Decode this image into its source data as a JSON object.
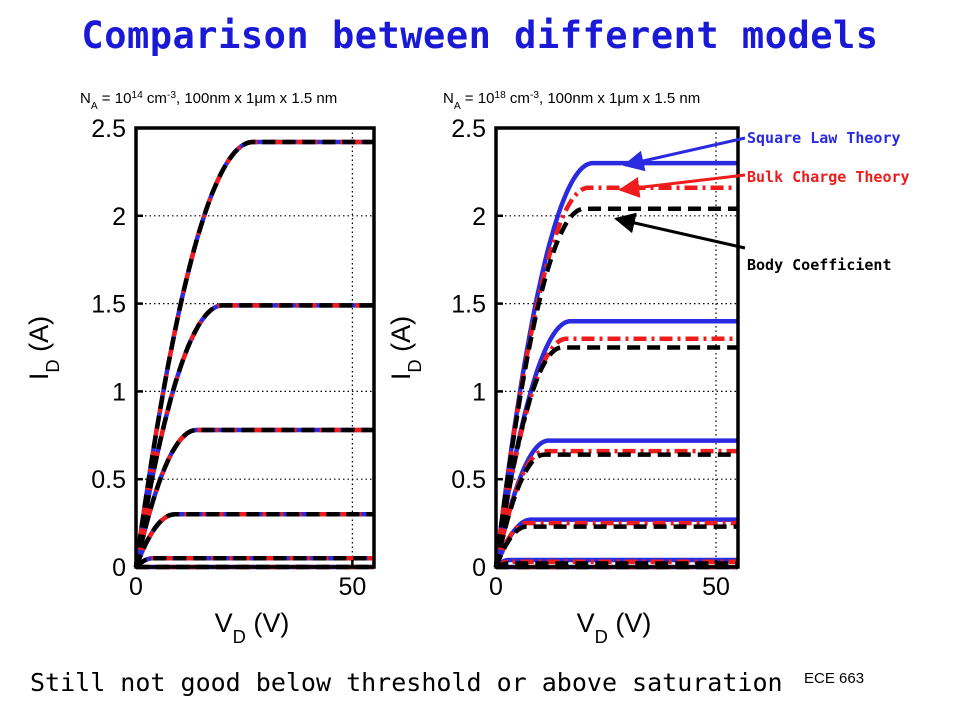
{
  "slide": {
    "title": "Comparison between different models",
    "footer": "Still not good below threshold or above saturation",
    "course": "ECE 663"
  },
  "colors": {
    "square_law": "#2a2ae0",
    "bulk_charge": "#ee1c1c",
    "body_coeff": "#000000",
    "title": "#1a1ad6"
  },
  "annotations": [
    {
      "text": "Square Law Theory",
      "color": "#2a2ae0",
      "target_series": "Square Law Theory"
    },
    {
      "text": "Bulk Charge Theory",
      "color": "#ee1c1c",
      "target_series": "Bulk Charge Theory"
    },
    {
      "text": "Body Coefficient",
      "color": "#000000",
      "target_series": "Body Coefficient"
    }
  ],
  "chart_data": [
    {
      "type": "line",
      "title": "N_A = 10^14 cm^-3, 100nm x 1μm x 1.5 nm",
      "title_parts": [
        "N",
        "A",
        " = 10",
        "14",
        " cm",
        "-3",
        ", 100nm x 1μm x 1.5 nm"
      ],
      "xlabel": [
        "V",
        "D",
        " (V)"
      ],
      "ylabel": [
        "I",
        "D",
        " (A)"
      ],
      "xlim": [
        0,
        55
      ],
      "ylim": [
        0,
        2.5
      ],
      "xticks": [
        0,
        50
      ],
      "yticks": [
        0,
        0.5,
        1,
        1.5,
        2,
        2.5
      ],
      "ytick_labels": [
        "0",
        "0.5",
        "1",
        "1.5",
        "2",
        "2.5"
      ],
      "grid": "dotted at ticks",
      "series": [
        {
          "name": "Square Law Theory",
          "style": "solid",
          "color": "#2a2ae0",
          "curves": [
            {
              "isat": 2.42,
              "vsat": 27
            },
            {
              "isat": 1.49,
              "vsat": 20
            },
            {
              "isat": 0.78,
              "vsat": 14
            },
            {
              "isat": 0.3,
              "vsat": 9
            },
            {
              "isat": 0.05,
              "vsat": 4
            },
            {
              "isat": 0.0,
              "vsat": 1
            }
          ]
        },
        {
          "name": "Bulk Charge Theory",
          "style": "dashdot",
          "color": "#ee1c1c",
          "curves": [
            {
              "isat": 2.42,
              "vsat": 27
            },
            {
              "isat": 1.49,
              "vsat": 20
            },
            {
              "isat": 0.78,
              "vsat": 14
            },
            {
              "isat": 0.3,
              "vsat": 9
            },
            {
              "isat": 0.05,
              "vsat": 4
            },
            {
              "isat": 0.0,
              "vsat": 1
            }
          ]
        },
        {
          "name": "Body Coefficient",
          "style": "dashed",
          "color": "#000000",
          "curves": [
            {
              "isat": 2.42,
              "vsat": 27
            },
            {
              "isat": 1.49,
              "vsat": 20
            },
            {
              "isat": 0.78,
              "vsat": 14
            },
            {
              "isat": 0.3,
              "vsat": 9
            },
            {
              "isat": 0.05,
              "vsat": 4
            },
            {
              "isat": 0.0,
              "vsat": 1
            }
          ]
        }
      ]
    },
    {
      "type": "line",
      "title": "N_A = 10^18 cm^-3, 100nm x 1μm x 1.5 nm",
      "title_parts": [
        "N",
        "A",
        " = 10",
        "18",
        " cm",
        "-3",
        ", 100nm x 1μm x 1.5 nm"
      ],
      "xlabel": [
        "V",
        "D",
        " (V)"
      ],
      "ylabel": [
        "I",
        "D",
        " (A)"
      ],
      "xlim": [
        0,
        55
      ],
      "ylim": [
        0,
        2.5
      ],
      "xticks": [
        0,
        50
      ],
      "yticks": [
        0,
        0.5,
        1,
        1.5,
        2,
        2.5
      ],
      "ytick_labels": [
        "0",
        "0.5",
        "1",
        "1.5",
        "2",
        "2.5"
      ],
      "grid": "dotted at ticks",
      "series": [
        {
          "name": "Square Law Theory",
          "style": "solid",
          "color": "#2a2ae0",
          "curves": [
            {
              "isat": 2.3,
              "vsat": 22
            },
            {
              "isat": 1.4,
              "vsat": 17
            },
            {
              "isat": 0.72,
              "vsat": 12
            },
            {
              "isat": 0.27,
              "vsat": 8
            },
            {
              "isat": 0.04,
              "vsat": 3
            },
            {
              "isat": 0.0,
              "vsat": 1
            }
          ]
        },
        {
          "name": "Bulk Charge Theory",
          "style": "dashdot",
          "color": "#ee1c1c",
          "curves": [
            {
              "isat": 2.16,
              "vsat": 21
            },
            {
              "isat": 1.3,
              "vsat": 16
            },
            {
              "isat": 0.66,
              "vsat": 11
            },
            {
              "isat": 0.25,
              "vsat": 7
            },
            {
              "isat": 0.03,
              "vsat": 3
            },
            {
              "isat": 0.0,
              "vsat": 1
            }
          ]
        },
        {
          "name": "Body Coefficient",
          "style": "dashed",
          "color": "#000000",
          "curves": [
            {
              "isat": 2.04,
              "vsat": 20
            },
            {
              "isat": 1.25,
              "vsat": 15
            },
            {
              "isat": 0.64,
              "vsat": 11
            },
            {
              "isat": 0.23,
              "vsat": 7
            },
            {
              "isat": 0.02,
              "vsat": 3
            },
            {
              "isat": 0.0,
              "vsat": 1
            }
          ]
        }
      ]
    }
  ]
}
